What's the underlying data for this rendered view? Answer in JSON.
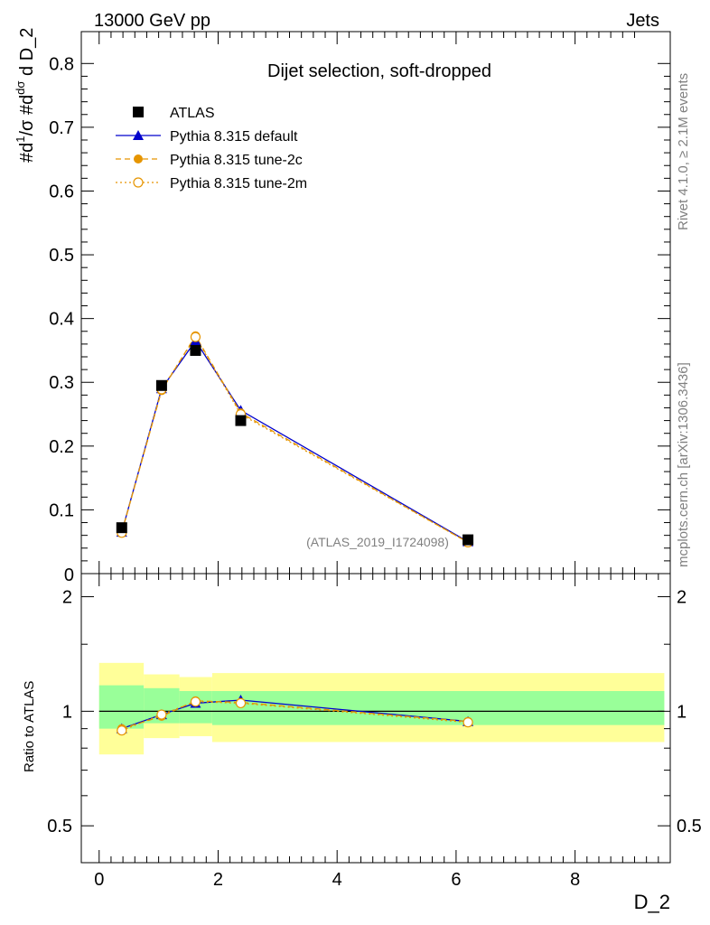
{
  "header": {
    "left": "13000 GeV pp",
    "right": "Jets"
  },
  "side": {
    "rivet": "Rivet 4.1.0, ≥ 2.1M events",
    "mcplots": "mcplots.cern.ch [arXiv:1306.3436]"
  },
  "chart_data": [
    {
      "type": "line",
      "title": "Dijet selection, soft-dropped",
      "xlabel": "D_2",
      "ylabel": "#d¹/σ #d dσ/d D_2",
      "xlim": [
        -0.3,
        9.6
      ],
      "ylim": [
        0,
        0.85
      ],
      "yticks": [
        "0.1",
        "0.2",
        "0.3",
        "0.4",
        "0.5",
        "0.6",
        "0.7",
        "0.8"
      ],
      "watermark": "(ATLAS_2019_I1724098)",
      "legend": [
        "ATLAS",
        "Pythia 8.315 default",
        "Pythia 8.315 tune-2c",
        "Pythia 8.315 tune-2m"
      ],
      "legend_position": "top-left",
      "x": [
        0.38,
        1.05,
        1.62,
        2.38,
        6.2
      ],
      "series": [
        {
          "name": "ATLAS",
          "values": [
            0.072,
            0.295,
            0.35,
            0.24,
            0.053
          ],
          "color": "#000000",
          "marker": "square"
        },
        {
          "name": "Pythia 8.315 default",
          "values": [
            0.065,
            0.29,
            0.365,
            0.256,
            0.05
          ],
          "color": "#0000cc",
          "marker": "triangle"
        },
        {
          "name": "Pythia 8.315 tune-2c",
          "values": [
            0.065,
            0.287,
            0.373,
            0.252,
            0.049
          ],
          "color": "#e69500",
          "marker": "circle"
        },
        {
          "name": "Pythia 8.315 tune-2m",
          "values": [
            0.064,
            0.289,
            0.371,
            0.25,
            0.049
          ],
          "color": "#e69500",
          "marker": "open-circle"
        }
      ]
    },
    {
      "type": "line",
      "ylabel": "Ratio to ATLAS",
      "xlabel": "D_2",
      "ylim": [
        0.4,
        2.3
      ],
      "yscale": "log",
      "yticks": [
        "0.5",
        "1",
        "2"
      ],
      "xticks": [
        "0",
        "2",
        "4",
        "6",
        "8"
      ],
      "x": [
        0.38,
        1.05,
        1.62,
        2.38,
        6.2
      ],
      "bands": {
        "bin_edges": [
          0.0,
          0.75,
          1.35,
          1.9,
          9.5
        ],
        "stat_low": [
          0.9,
          0.93,
          0.93,
          0.92
        ],
        "stat_high": [
          1.17,
          1.15,
          1.13,
          1.13
        ],
        "total_low": [
          0.77,
          0.85,
          0.86,
          0.83
        ],
        "total_high": [
          1.34,
          1.25,
          1.23,
          1.26
        ],
        "stat_color": "#99ff99",
        "total_color": "#ffff99"
      },
      "series": [
        {
          "name": "Pythia 8.315 default",
          "values": [
            0.9,
            0.98,
            1.05,
            1.07,
            0.94
          ],
          "color": "#0000cc",
          "marker": "triangle"
        },
        {
          "name": "Pythia 8.315 tune-2c",
          "values": [
            0.9,
            0.97,
            1.065,
            1.055,
            0.94
          ],
          "color": "#e69500",
          "marker": "circle"
        },
        {
          "name": "Pythia 8.315 tune-2m",
          "values": [
            0.89,
            0.98,
            1.06,
            1.05,
            0.935
          ],
          "color": "#e69500",
          "marker": "open-circle"
        }
      ]
    }
  ]
}
